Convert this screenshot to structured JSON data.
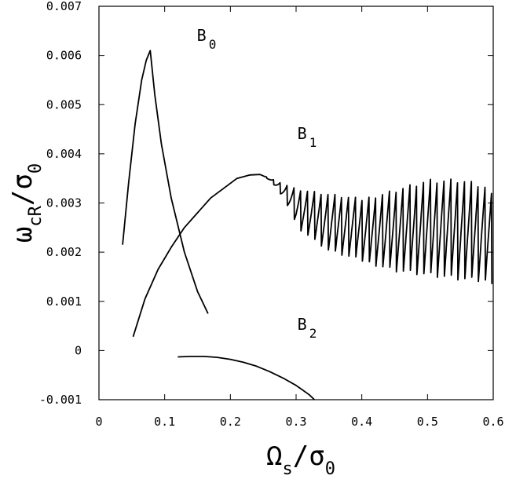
{
  "chart_data": {
    "type": "line",
    "xlabel": {
      "main": "Ω",
      "sub": "s",
      "slash": "/σ",
      "sub2": "0"
    },
    "ylabel": {
      "main": "ω",
      "sub": "cR",
      "slash": "/σ",
      "sub2": "0"
    },
    "xlim": [
      0,
      0.6
    ],
    "ylim": [
      -0.001,
      0.007
    ],
    "xticks": [
      0,
      0.1,
      0.2,
      0.3,
      0.4,
      0.5,
      0.6
    ],
    "xtick_labels": [
      "0",
      "0.1",
      "0.2",
      "0.3",
      "0.4",
      "0.5",
      "0.6"
    ],
    "yticks": [
      -0.001,
      0,
      0.001,
      0.002,
      0.003,
      0.004,
      0.005,
      0.006,
      0.007
    ],
    "ytick_labels": [
      "-0.001",
      "0",
      "0.001",
      "0.002",
      "0.003",
      "0.004",
      "0.005",
      "0.006",
      "0.007"
    ],
    "grid": false,
    "series": [
      {
        "name": "B0",
        "label": {
          "main": "B",
          "sub": "0"
        },
        "x": [
          0.036,
          0.045,
          0.055,
          0.065,
          0.072,
          0.078,
          0.085,
          0.095,
          0.11,
          0.13,
          0.15,
          0.166
        ],
        "y": [
          0.00215,
          0.0034,
          0.0046,
          0.0055,
          0.0059,
          0.0061,
          0.0052,
          0.0042,
          0.0031,
          0.002,
          0.0012,
          0.00075
        ]
      },
      {
        "name": "B1",
        "label": {
          "main": "B",
          "sub": "1"
        },
        "x": [
          0.052,
          0.07,
          0.09,
          0.11,
          0.13,
          0.15,
          0.17,
          0.19,
          0.21,
          0.23,
          0.245
        ],
        "y": [
          0.00028,
          0.00105,
          0.00165,
          0.0021,
          0.0025,
          0.0028,
          0.0031,
          0.0033,
          0.0035,
          0.00357,
          0.00358
        ],
        "oscillation": {
          "x_start": 0.245,
          "x_end": 0.598,
          "upper": [
            [
              0.245,
              0.00358
            ],
            [
              0.3,
              0.0033
            ],
            [
              0.4,
              0.0031
            ],
            [
              0.5,
              0.0035
            ],
            [
              0.55,
              0.0035
            ],
            [
              0.58,
              0.0034
            ],
            [
              0.598,
              0.0033
            ]
          ],
          "lower": [
            [
              0.245,
              0.00358
            ],
            [
              0.26,
              0.0033
            ],
            [
              0.3,
              0.0025
            ],
            [
              0.35,
              0.002
            ],
            [
              0.45,
              0.0016
            ],
            [
              0.55,
              0.0014
            ],
            [
              0.598,
              0.00135
            ]
          ]
        }
      },
      {
        "name": "B2",
        "label": {
          "main": "B",
          "sub": "2"
        },
        "x": [
          0.12,
          0.14,
          0.16,
          0.18,
          0.2,
          0.22,
          0.24,
          0.26,
          0.28,
          0.3,
          0.32,
          0.328
        ],
        "y": [
          -0.00013,
          -0.00012,
          -0.00012,
          -0.00014,
          -0.00018,
          -0.00024,
          -0.00032,
          -0.00043,
          -0.00056,
          -0.00071,
          -0.0009,
          -0.001
        ]
      }
    ]
  }
}
